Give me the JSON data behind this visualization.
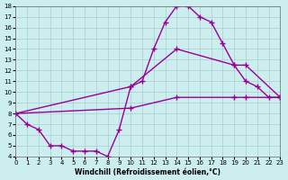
{
  "xlabel": "Windchill (Refroidissement éolien,°C)",
  "ylabel": "",
  "bg_color": "#cceeee",
  "line_color": "#990099",
  "grid_color": "#aacccc",
  "xlim": [
    0,
    23
  ],
  "ylim": [
    4,
    18
  ],
  "xticks": [
    0,
    1,
    2,
    3,
    4,
    5,
    6,
    7,
    8,
    9,
    10,
    11,
    12,
    13,
    14,
    15,
    16,
    17,
    18,
    19,
    20,
    21,
    22,
    23
  ],
  "yticks": [
    4,
    5,
    6,
    7,
    8,
    9,
    10,
    11,
    12,
    13,
    14,
    15,
    16,
    17,
    18
  ],
  "curve1_x": [
    0,
    1,
    2,
    3,
    4,
    5,
    6,
    7,
    8,
    9,
    10,
    11,
    12,
    13,
    14,
    15,
    16,
    17,
    18,
    19,
    20,
    21,
    22,
    23
  ],
  "curve1_y": [
    8,
    7,
    6.5,
    5,
    5,
    4.5,
    4.5,
    4.5,
    4,
    6.5,
    10.5,
    11,
    14,
    16.5,
    18,
    18,
    17,
    16.5,
    14.5,
    12.5,
    11,
    10.5,
    9.5,
    9.5
  ],
  "curve2_x": [
    0,
    10,
    14,
    19,
    20,
    23
  ],
  "curve2_y": [
    8,
    10.5,
    14,
    12.5,
    12.5,
    9.5
  ],
  "curve3_x": [
    0,
    10,
    14,
    19,
    20,
    23
  ],
  "curve3_y": [
    8,
    8.5,
    9.5,
    9.5,
    9.5,
    9.5
  ],
  "markersize": 4,
  "linewidth": 1.0
}
